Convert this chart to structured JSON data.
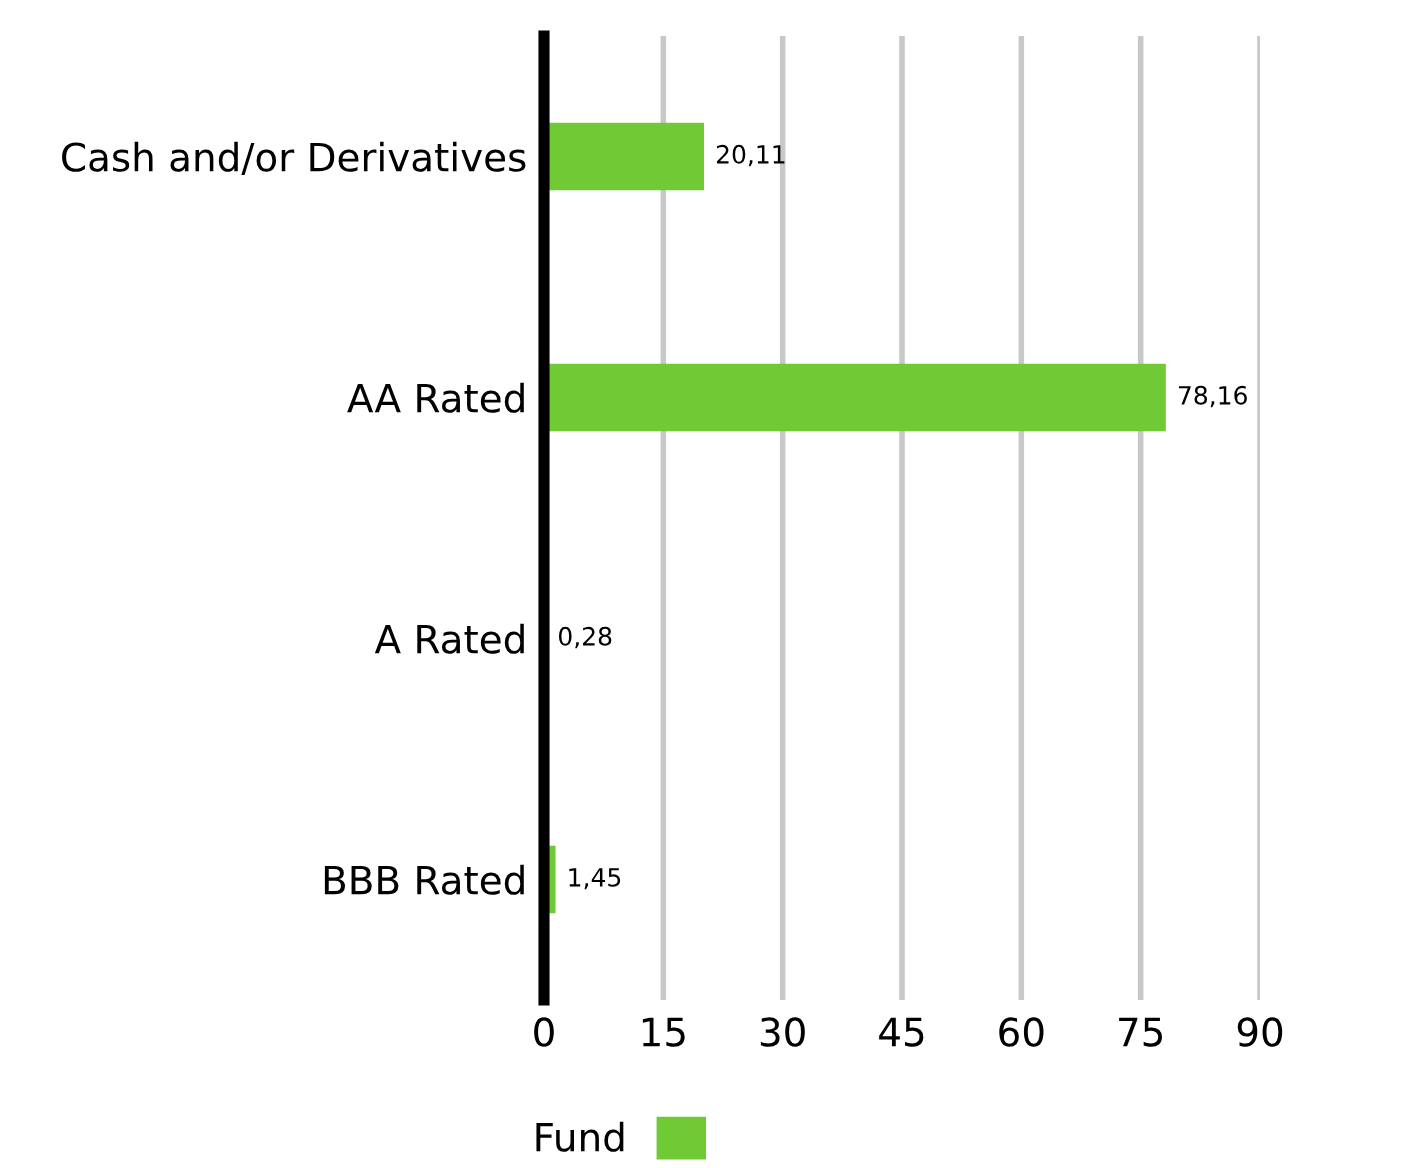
{
  "chart_data": {
    "type": "bar",
    "orientation": "horizontal",
    "categories": [
      "Cash and/or Derivatives",
      "AA Rated",
      "A Rated",
      "BBB Rated"
    ],
    "series": [
      {
        "name": "Fund",
        "color": "#6fca35",
        "values": [
          20.11,
          78.16,
          0.28,
          1.45
        ],
        "value_labels": [
          "20,11",
          "78,16",
          "0,28",
          "1,45"
        ]
      }
    ],
    "xlim": [
      0,
      90
    ],
    "xticks": [
      0,
      15,
      30,
      45,
      60,
      75,
      90
    ],
    "grid": "x",
    "legend": "bottom"
  }
}
